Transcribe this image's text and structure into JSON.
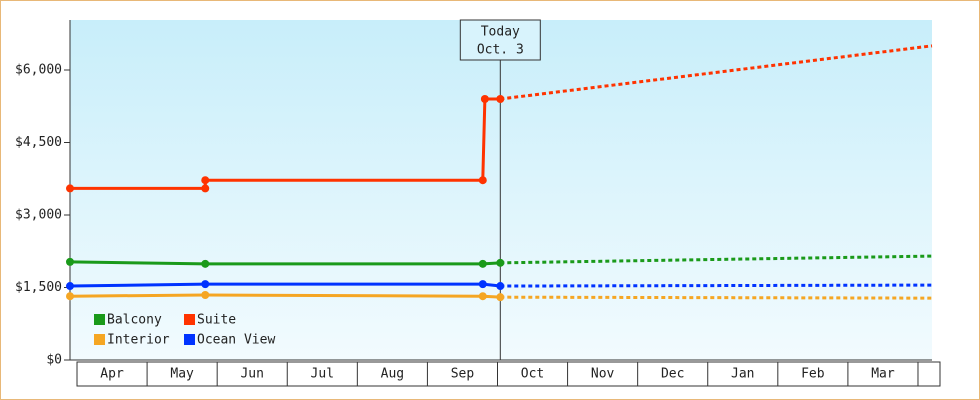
{
  "chart_data": {
    "type": "line",
    "categories": [
      "Apr",
      "May",
      "Jun",
      "Jul",
      "Aug",
      "Sep",
      "Oct",
      "Nov",
      "Dec",
      "Jan",
      "Feb",
      "Mar"
    ],
    "xlim": [
      -0.1,
      12.2
    ],
    "ylim": [
      0,
      7000
    ],
    "yticks": [
      {
        "value": 0,
        "label": "$0"
      },
      {
        "value": 1500,
        "label": "$1,500"
      },
      {
        "value": 3000,
        "label": "$3,000"
      },
      {
        "value": 4500,
        "label": "$4,500"
      },
      {
        "value": 6000,
        "label": "$6,000"
      }
    ],
    "today": {
      "x": 6.04,
      "label": "Today",
      "date": "Oct. 3"
    },
    "legend": "lower left",
    "series": [
      {
        "name": "Balcony",
        "color": "#1a9a1a",
        "x": [
          -0.1,
          1.83,
          5.79,
          6.04,
          12.2
        ],
        "values": [
          2030,
          1990,
          1990,
          2010,
          2150
        ]
      },
      {
        "name": "Suite",
        "color": "#ff3300",
        "x": [
          -0.1,
          1.83,
          1.83,
          5.79,
          5.82,
          6.04,
          12.2
        ],
        "values": [
          3550,
          3550,
          3720,
          3720,
          5400,
          5400,
          6500
        ]
      },
      {
        "name": "Interior",
        "color": "#f5a623",
        "x": [
          -0.1,
          1.83,
          5.79,
          6.04,
          12.2
        ],
        "values": [
          1320,
          1345,
          1320,
          1300,
          1280
        ]
      },
      {
        "name": "Ocean View",
        "color": "#0033ff",
        "x": [
          -0.1,
          1.83,
          5.79,
          6.04,
          12.2
        ],
        "values": [
          1530,
          1570,
          1570,
          1530,
          1550
        ]
      }
    ]
  }
}
